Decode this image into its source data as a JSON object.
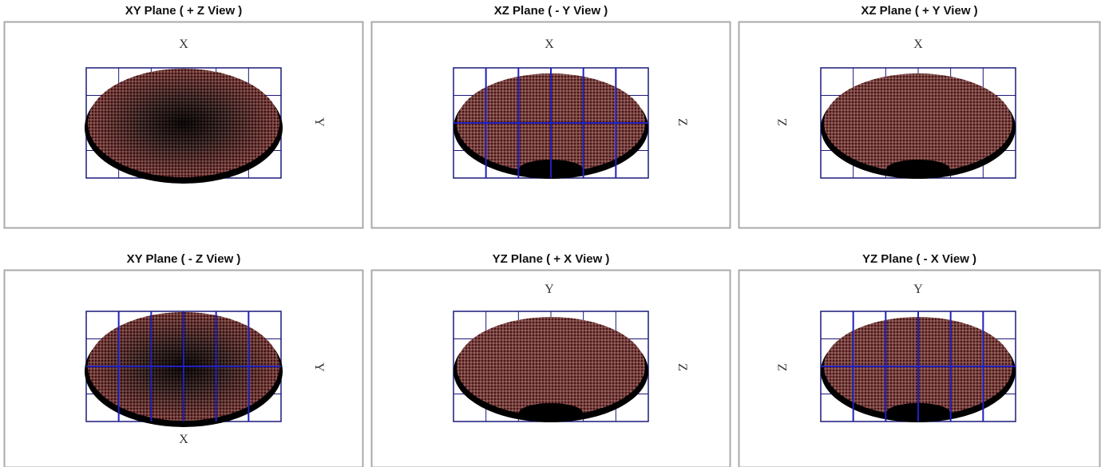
{
  "panels": [
    {
      "title": "XY Plane ( + Z View )",
      "axis_a": "X",
      "axis_b": "Y"
    },
    {
      "title": "XZ Plane ( - Y View )",
      "axis_a": "X",
      "axis_b": "Z"
    },
    {
      "title": "XZ Plane ( + Y View )",
      "axis_a": "X",
      "axis_b": "Z"
    },
    {
      "title": "XY Plane ( - Z View )",
      "axis_a": "X",
      "axis_b": "Y"
    },
    {
      "title": "YZ Plane ( + X View )",
      "axis_a": "Y",
      "axis_b": "Z"
    },
    {
      "title": "YZ Plane ( - X View )",
      "axis_a": "Y",
      "axis_b": "Z"
    }
  ]
}
